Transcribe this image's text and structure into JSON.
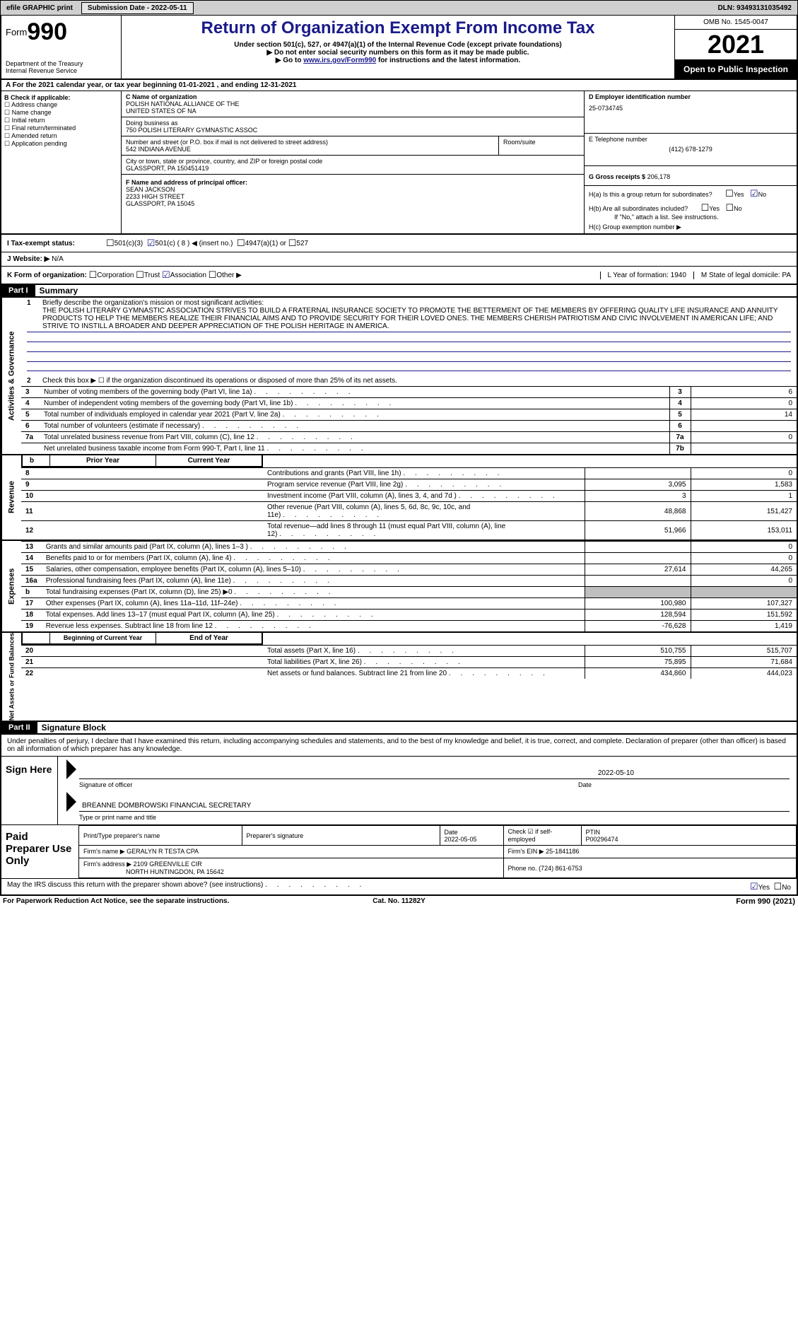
{
  "topbar": {
    "efile": "efile GRAPHIC print",
    "submission_label": "Submission Date - 2022-05-11",
    "dln": "DLN: 93493131035492"
  },
  "header": {
    "form_word": "Form",
    "form_num": "990",
    "dept": "Department of the Treasury",
    "irs": "Internal Revenue Service",
    "title": "Return of Organization Exempt From Income Tax",
    "sub1": "Under section 501(c), 527, or 4947(a)(1) of the Internal Revenue Code (except private foundations)",
    "sub2": "Do not enter social security numbers on this form as it may be made public.",
    "sub3_pre": "Go to ",
    "sub3_link": "www.irs.gov/Form990",
    "sub3_post": " for instructions and the latest information.",
    "omb": "OMB No. 1545-0047",
    "year": "2021",
    "open": "Open to Public Inspection"
  },
  "line_a": "For the 2021 calendar year, or tax year beginning 01-01-2021     , and ending 12-31-2021",
  "boxB": {
    "label": "B Check if applicable:",
    "items": [
      "Address change",
      "Name change",
      "Initial return",
      "Final return/terminated",
      "Amended return",
      "Application pending"
    ]
  },
  "boxC": {
    "name_lbl": "C Name of organization",
    "name1": "POLISH NATIONAL ALLIANCE OF THE",
    "name2": "UNITED STATES OF NA",
    "dba_lbl": "Doing business as",
    "dba": "750 POLISH LITERARY GYMNASTIC ASSOC",
    "street_lbl": "Number and street (or P.O. box if mail is not delivered to street address)",
    "street": "542 INDIANA AVENUE",
    "room_lbl": "Room/suite",
    "city_lbl": "City or town, state or province, country, and ZIP or foreign postal code",
    "city": "GLASSPORT, PA  150451419"
  },
  "boxD": {
    "lbl": "D Employer identification number",
    "val": "25-0734745"
  },
  "boxE": {
    "lbl": "E Telephone number",
    "val": "(412) 678-1279"
  },
  "boxG": {
    "lbl": "G Gross receipts $",
    "val": "206,178"
  },
  "boxF": {
    "lbl": "F  Name and address of principal officer:",
    "name": "SEAN JACKSON",
    "addr1": "2233 HIGH STREET",
    "addr2": "GLASSPORT, PA  15045"
  },
  "boxH": {
    "ha": "H(a)  Is this a group return for subordinates?",
    "hb": "H(b)  Are all subordinates included?",
    "hb_note": "If \"No,\" attach a list. See instructions.",
    "hc": "H(c)  Group exemption number ▶"
  },
  "rowI": {
    "lbl": "I    Tax-exempt status:",
    "opts": [
      "501(c)(3)",
      "501(c) ( 8 ) ◀ (insert no.)",
      "4947(a)(1) or",
      "527"
    ]
  },
  "rowJ": {
    "lbl": "J    Website: ▶",
    "val": "N/A"
  },
  "rowK": {
    "lbl": "K Form of organization:",
    "opts": [
      "Corporation",
      "Trust",
      "Association",
      "Other ▶"
    ],
    "checked_idx": 2,
    "L": "L Year of formation: 1940",
    "M": "M State of legal domicile: PA"
  },
  "partI": {
    "hdr": "Part I",
    "title": "Summary"
  },
  "activities": {
    "tab": "Activities & Governance",
    "line1_lbl": "Briefly describe the organization's mission or most significant activities:",
    "mission": "THE POLISH LITERARY GYMNASTIC ASSOCIATION STRIVES TO BUILD A FRATERNAL INSURANCE SOCIETY TO PROMOTE THE BETTERMENT OF THE MEMBERS BY OFFERING QUALITY LIFE INSURANCE AND ANNUITY PRODUCTS TO HELP THE MEMBERS REALIZE THEIR FINANCIAL AIMS AND TO PROVIDE SECURITY FOR THEIR LOVED ONES. THE MEMBERS CHERISH PATRIOTISM AND CIVIC INVOLVEMENT IN AMERICAN LIFE; AND STRIVE TO INSTILL A BROADER AND DEEPER APPRECIATION OF THE POLISH HERITAGE IN AMERICA.",
    "line2": "Check this box ▶ ☐  if the organization discontinued its operations or disposed of more than 25% of its net assets.",
    "rows": [
      {
        "n": "3",
        "d": "Number of voting members of the governing body (Part VI, line 1a)",
        "box": "3",
        "v": "6"
      },
      {
        "n": "4",
        "d": "Number of independent voting members of the governing body (Part VI, line 1b)",
        "box": "4",
        "v": "0"
      },
      {
        "n": "5",
        "d": "Total number of individuals employed in calendar year 2021 (Part V, line 2a)",
        "box": "5",
        "v": "14"
      },
      {
        "n": "6",
        "d": "Total number of volunteers (estimate if necessary)",
        "box": "6",
        "v": ""
      },
      {
        "n": "7a",
        "d": "Total unrelated business revenue from Part VIII, column (C), line 12",
        "box": "7a",
        "v": "0"
      },
      {
        "n": "",
        "d": "Net unrelated business taxable income from Form 990-T, Part I, line 11",
        "box": "7b",
        "v": ""
      }
    ]
  },
  "revenue": {
    "tab": "Revenue",
    "hdr_prior": "Prior Year",
    "hdr_curr": "Current Year",
    "rows": [
      {
        "n": "8",
        "d": "Contributions and grants (Part VIII, line 1h)",
        "p": "",
        "c": "0"
      },
      {
        "n": "9",
        "d": "Program service revenue (Part VIII, line 2g)",
        "p": "3,095",
        "c": "1,583"
      },
      {
        "n": "10",
        "d": "Investment income (Part VIII, column (A), lines 3, 4, and 7d )",
        "p": "3",
        "c": "1"
      },
      {
        "n": "11",
        "d": "Other revenue (Part VIII, column (A), lines 5, 6d, 8c, 9c, 10c, and 11e)",
        "p": "48,868",
        "c": "151,427"
      },
      {
        "n": "12",
        "d": "Total revenue—add lines 8 through 11 (must equal Part VIII, column (A), line 12)",
        "p": "51,966",
        "c": "153,011"
      }
    ]
  },
  "expenses": {
    "tab": "Expenses",
    "rows": [
      {
        "n": "13",
        "d": "Grants and similar amounts paid (Part IX, column (A), lines 1–3 )",
        "p": "",
        "c": "0"
      },
      {
        "n": "14",
        "d": "Benefits paid to or for members (Part IX, column (A), line 4)",
        "p": "",
        "c": "0"
      },
      {
        "n": "15",
        "d": "Salaries, other compensation, employee benefits (Part IX, column (A), lines 5–10)",
        "p": "27,614",
        "c": "44,265"
      },
      {
        "n": "16a",
        "d": "Professional fundraising fees (Part IX, column (A), line 11e)",
        "p": "",
        "c": "0"
      },
      {
        "n": "b",
        "d": "Total fundraising expenses (Part IX, column (D), line 25) ▶0",
        "p": "shade",
        "c": "shade"
      },
      {
        "n": "17",
        "d": "Other expenses (Part IX, column (A), lines 11a–11d, 11f–24e)",
        "p": "100,980",
        "c": "107,327"
      },
      {
        "n": "18",
        "d": "Total expenses. Add lines 13–17 (must equal Part IX, column (A), line 25)",
        "p": "128,594",
        "c": "151,592"
      },
      {
        "n": "19",
        "d": "Revenue less expenses. Subtract line 18 from line 12",
        "p": "-76,628",
        "c": "1,419"
      }
    ]
  },
  "netassets": {
    "tab": "Net Assets or Fund Balances",
    "hdr_begin": "Beginning of Current Year",
    "hdr_end": "End of Year",
    "rows": [
      {
        "n": "20",
        "d": "Total assets (Part X, line 16)",
        "p": "510,755",
        "c": "515,707"
      },
      {
        "n": "21",
        "d": "Total liabilities (Part X, line 26)",
        "p": "75,895",
        "c": "71,684"
      },
      {
        "n": "22",
        "d": "Net assets or fund balances. Subtract line 21 from line 20",
        "p": "434,860",
        "c": "444,023"
      }
    ]
  },
  "partII": {
    "hdr": "Part II",
    "title": "Signature Block"
  },
  "sig": {
    "decl": "Under penalties of perjury, I declare that I have examined this return, including accompanying schedules and statements, and to the best of my knowledge and belief, it is true, correct, and complete. Declaration of preparer (other than officer) is based on all information of which preparer has any knowledge.",
    "sign_here": "Sign Here",
    "sig_of_officer": "Signature of officer",
    "date_lbl": "Date",
    "sig_date": "2022-05-10",
    "printed_name": "BREANNE DOMBROWSKI  FINANCIAL SECRETARY",
    "type_lbl": "Type or print name and title"
  },
  "prep": {
    "label": "Paid Preparer Use Only",
    "ptname_lbl": "Print/Type preparer's name",
    "psig_lbl": "Preparer's signature",
    "date_lbl": "Date",
    "date": "2022-05-05",
    "check_lbl": "Check ☑ if self-employed",
    "ptin_lbl": "PTIN",
    "ptin": "P00296474",
    "firm_name_lbl": "Firm's name     ▶",
    "firm_name": "GERALYN R TESTA CPA",
    "firm_ein_lbl": "Firm's EIN ▶",
    "firm_ein": "25-1841186",
    "firm_addr_lbl": "Firm's address ▶",
    "firm_addr1": "2109 GREENVILLE CIR",
    "firm_addr2": "NORTH HUNTINGDON, PA  15642",
    "phone_lbl": "Phone no.",
    "phone": "(724) 861-6753"
  },
  "discuss": "May the IRS discuss this return with the preparer shown above? (see instructions)",
  "footer": {
    "left": "For Paperwork Reduction Act Notice, see the separate instructions.",
    "mid": "Cat. No. 11282Y",
    "right_pre": "Form ",
    "right_bold": "990",
    "right_post": " (2021)"
  }
}
